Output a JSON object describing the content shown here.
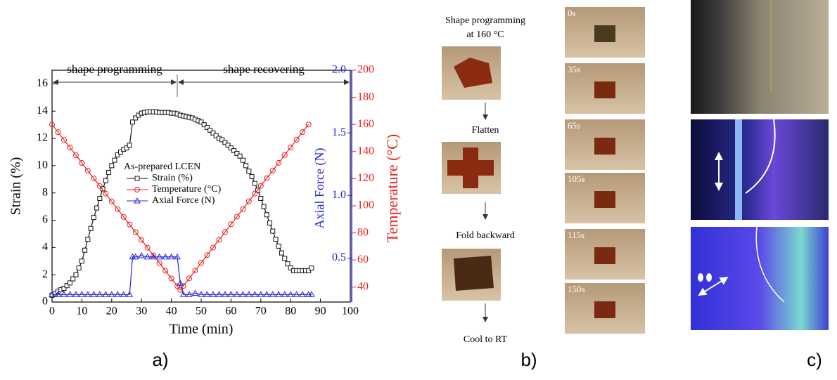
{
  "chart_data": {
    "type": "line",
    "xlabel": "Time (min)",
    "ylabel": "Strain (%)",
    "y2label": "Axial Force (N)",
    "y3label": "Temperature (°C)",
    "legend_title": "As-prepared LCEN",
    "annotations": [
      "shape programming",
      "shape recovering"
    ],
    "xlim": [
      0,
      100
    ],
    "xticks": [
      0,
      10,
      20,
      30,
      40,
      50,
      60,
      70,
      80,
      90,
      100
    ],
    "ylim": [
      0,
      17
    ],
    "yticks": [
      0,
      2,
      4,
      6,
      8,
      10,
      12,
      14,
      16
    ],
    "y2lim": [
      0.15,
      2.0
    ],
    "y2ticks": [
      {
        "value": 0.5,
        "label": "0.5"
      },
      {
        "value": 1.0,
        "label": "1.0"
      },
      {
        "value": 1.5,
        "label": "1.5"
      },
      {
        "value": 2.0,
        "label": "2.0"
      }
    ],
    "y3lim": [
      29,
      200
    ],
    "y3ticks": [
      40,
      60,
      80,
      100,
      120,
      140,
      160,
      180,
      200
    ],
    "series": [
      {
        "name": "Strain (%)",
        "color": "#111111",
        "marker": "square",
        "x": [
          0,
          1,
          2,
          3,
          4,
          5,
          6,
          7,
          8,
          9,
          10,
          11,
          12,
          13,
          14,
          15,
          16,
          17,
          18,
          19,
          20,
          21,
          22,
          23,
          24,
          25,
          26,
          27,
          28,
          29,
          30,
          31,
          32,
          33,
          34,
          35,
          36,
          37,
          38,
          39,
          40,
          41,
          42,
          43,
          44,
          45,
          46,
          47,
          48,
          49,
          50,
          51,
          52,
          53,
          54,
          55,
          56,
          57,
          58,
          59,
          60,
          61,
          62,
          63,
          64,
          65,
          66,
          67,
          68,
          69,
          70,
          71,
          72,
          73,
          74,
          75,
          76,
          77,
          78,
          79,
          80,
          81,
          82,
          83,
          84,
          85,
          86,
          87
        ],
        "values": [
          0.5,
          0.6,
          0.8,
          0.9,
          1.0,
          1.2,
          1.4,
          1.7,
          2.0,
          2.5,
          3.0,
          3.8,
          4.6,
          5.4,
          6.2,
          6.9,
          7.6,
          8.3,
          8.9,
          9.5,
          10.0,
          10.4,
          10.8,
          11.0,
          11.2,
          11.3,
          11.5,
          13.2,
          13.5,
          13.7,
          13.85,
          13.9,
          13.95,
          13.95,
          13.95,
          13.95,
          13.9,
          13.9,
          13.9,
          13.9,
          13.85,
          13.85,
          13.8,
          13.7,
          13.65,
          13.6,
          13.55,
          13.5,
          13.4,
          13.3,
          13.2,
          13.0,
          12.8,
          12.6,
          12.4,
          12.2,
          12.0,
          11.9,
          11.7,
          11.5,
          11.3,
          11.1,
          10.9,
          10.7,
          10.4,
          10.0,
          9.6,
          9.2,
          8.7,
          8.2,
          7.6,
          7.0,
          6.4,
          5.8,
          5.2,
          4.6,
          4.1,
          3.6,
          3.2,
          2.8,
          2.5,
          2.3,
          2.3,
          2.3,
          2.3,
          2.3,
          2.3,
          2.5
        ]
      },
      {
        "name": "Temperature (°C)",
        "color": "#e8211a",
        "marker": "circle",
        "axis": "y3",
        "x": [
          0,
          2,
          4,
          6,
          8,
          10,
          12,
          14,
          16,
          18,
          20,
          22,
          24,
          26,
          28,
          30,
          32,
          34,
          36,
          38,
          40,
          42,
          43,
          44,
          46,
          48,
          50,
          52,
          54,
          56,
          58,
          60,
          62,
          64,
          66,
          68,
          70,
          72,
          74,
          76,
          78,
          80,
          82,
          84,
          86
        ],
        "values": [
          160,
          154.3,
          148.6,
          143,
          137.3,
          131.6,
          125.9,
          120.2,
          114.6,
          108.9,
          103.2,
          97.5,
          91.8,
          86.2,
          80.5,
          74.8,
          69.1,
          63.4,
          57.8,
          52.1,
          46.4,
          40.7,
          38,
          40.8,
          46.5,
          52.2,
          57.9,
          63.6,
          69.2,
          74.9,
          80.6,
          86.3,
          92,
          97.6,
          103.3,
          109,
          114.7,
          120.4,
          126,
          131.7,
          137.4,
          143.1,
          148.8,
          154.4,
          160
        ]
      },
      {
        "name": "Axial Force (N)",
        "color": "#2424d8",
        "marker": "triangle",
        "axis": "y2",
        "x": [
          0,
          2,
          4,
          6,
          8,
          10,
          12,
          14,
          16,
          18,
          20,
          22,
          24,
          26,
          27,
          28,
          30,
          32,
          34,
          36,
          38,
          40,
          42,
          43,
          44,
          46,
          48,
          50,
          52,
          54,
          56,
          58,
          60,
          62,
          64,
          66,
          68,
          70,
          72,
          74,
          76,
          78,
          80,
          82,
          84,
          86,
          87
        ],
        "values": [
          0.21,
          0.21,
          0.21,
          0.21,
          0.21,
          0.21,
          0.21,
          0.21,
          0.21,
          0.21,
          0.21,
          0.21,
          0.21,
          0.21,
          0.51,
          0.51,
          0.52,
          0.51,
          0.51,
          0.51,
          0.51,
          0.51,
          0.51,
          0.3,
          0.21,
          0.21,
          0.22,
          0.21,
          0.21,
          0.21,
          0.21,
          0.21,
          0.21,
          0.21,
          0.21,
          0.21,
          0.21,
          0.21,
          0.21,
          0.21,
          0.21,
          0.21,
          0.21,
          0.21,
          0.21,
          0.21,
          0.21
        ]
      }
    ]
  },
  "panel_labels": [
    "a)",
    "b)",
    "c)"
  ],
  "steps": [
    "Shape programming at 160 °C",
    "Flatten",
    "Fold backward",
    "Cool to RT"
  ],
  "time_labels": [
    "0s",
    "35s",
    "65s",
    "105s",
    "115s",
    "150s"
  ]
}
